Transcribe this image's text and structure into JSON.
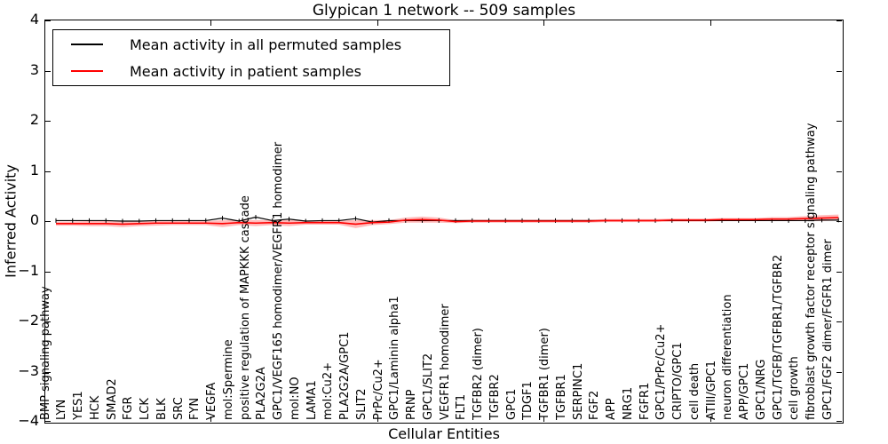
{
  "figure": {
    "title": "Glypican 1 network -- 509 samples",
    "xlabel": "Cellular Entities",
    "ylabel": "Inferred Activity"
  },
  "legend": {
    "position": "upper left",
    "items": [
      {
        "label": "Mean activity in all permuted samples",
        "color": "#000000"
      },
      {
        "label": "Mean activity in patient samples",
        "color": "#ff0000"
      }
    ]
  },
  "colors": {
    "frame": "#000000",
    "background": "#ffffff",
    "permuted_line": "#000000",
    "patient_line": "#ff0000",
    "patient_band": "rgba(255,60,60,0.35)"
  },
  "chart_data": {
    "type": "line",
    "title": "Glypican 1 network -- 509 samples",
    "xlabel": "Cellular Entities",
    "ylabel": "Inferred Activity",
    "ylim": [
      -4,
      4
    ],
    "ytick_values": [
      4,
      3,
      2,
      1,
      0,
      -1,
      -2,
      -3,
      -4
    ],
    "ytick_labels": [
      "4",
      "3",
      "2",
      "1",
      "0",
      "−1",
      "−2",
      "−3",
      "−4"
    ],
    "grid": false,
    "legend_position": "upper left",
    "categories": [
      "BMP signaling pathway",
      "LYN",
      "YES1",
      "HCK",
      "SMAD2",
      "FGR",
      "LCK",
      "BLK",
      "SRC",
      "FYN",
      "VEGFA",
      "mol:Spermine",
      "positive regulation of MAPKKK cascade",
      "PLA2G2A",
      "GPC1/VEGF165 homodimer/VEGFR1 homodimer",
      "mol:NO",
      "LAMA1",
      "mol:Cu2+",
      "PLA2G2A/GPC1",
      "SLIT2",
      "PrPc/Cu2+",
      "GPC1/Laminin alpha1",
      "PRNP",
      "GPC1/SLIT2",
      "VEGFR1 homodimer",
      "FLT1",
      "TGFBR2 (dimer)",
      "TGFBR2",
      "GPC1",
      "TDGF1",
      "TGFBR1 (dimer)",
      "TGFBR1",
      "SERPINC1",
      "FGF2",
      "APP",
      "NRG1",
      "FGFR1",
      "GPC1/PrPc/Cu2+",
      "CRIPTO/GPC1",
      "cell death",
      "ATIII/GPC1",
      "neuron differentiation",
      "APP/GPC1",
      "GPC1/NRG",
      "GPC1/TGFB/TGFBR1/TGFBR2",
      "cell growth",
      "fibroblast growth factor receptor signaling pathway",
      "GPC1/FGF2 dimer/FGFR1 dimer"
    ],
    "series": [
      {
        "name": "Mean activity in all permuted samples",
        "color": "#000000",
        "marker": "|",
        "values": [
          0.01,
          0.01,
          0.01,
          0.01,
          0,
          0,
          0.01,
          0.01,
          0.01,
          0.01,
          0.06,
          0,
          0.08,
          0.01,
          0.04,
          0,
          0.01,
          0.01,
          0.05,
          -0.02,
          0.01,
          0.01,
          0.01,
          0.01,
          0.01,
          0.01,
          0.01,
          0.01,
          0.01,
          0.01,
          0.01,
          0.01,
          0.01,
          0.01,
          0.01,
          0.01,
          0.01,
          0.01,
          0.01,
          0.01,
          0.01,
          0.01,
          0.01,
          0.01,
          0.01,
          0.01,
          0.02,
          0.02
        ]
      },
      {
        "name": "Mean activity in patient samples",
        "color": "#ff0000",
        "marker": "none",
        "values": [
          -0.05,
          -0.05,
          -0.05,
          -0.05,
          -0.06,
          -0.05,
          -0.04,
          -0.04,
          -0.04,
          -0.04,
          -0.05,
          -0.03,
          -0.04,
          -0.03,
          -0.04,
          -0.03,
          -0.03,
          -0.03,
          -0.06,
          -0.03,
          -0.02,
          0.02,
          0.03,
          0.02,
          -0.01,
          0,
          0,
          0,
          0,
          0,
          0,
          0,
          0,
          0.01,
          0.01,
          0.01,
          0.01,
          0.02,
          0.02,
          0.02,
          0.03,
          0.03,
          0.03,
          0.04,
          0.04,
          0.05,
          0.06,
          0.07
        ],
        "band_halfwidth": [
          0.04,
          0.04,
          0.05,
          0.05,
          0.06,
          0.05,
          0.05,
          0.04,
          0.04,
          0.04,
          0.07,
          0.05,
          0.06,
          0.05,
          0.06,
          0.04,
          0.04,
          0.04,
          0.08,
          0.05,
          0.04,
          0.05,
          0.06,
          0.05,
          0.03,
          0.03,
          0.03,
          0.03,
          0.03,
          0.03,
          0.03,
          0.03,
          0.03,
          0.03,
          0.03,
          0.03,
          0.03,
          0.03,
          0.03,
          0.03,
          0.03,
          0.03,
          0.03,
          0.04,
          0.04,
          0.05,
          0.06,
          0.06
        ]
      }
    ]
  }
}
